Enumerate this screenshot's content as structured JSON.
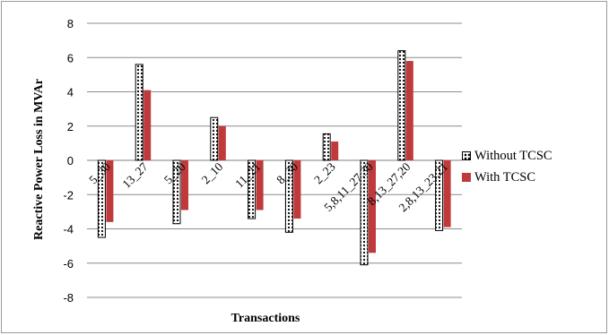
{
  "chart_data": {
    "type": "bar",
    "title": "",
    "xlabel": "Transactions",
    "ylabel": "Reactive Power Loss  in MVAr",
    "ylim": [
      -8,
      8
    ],
    "yticks": [
      "8",
      "6",
      "4",
      "2",
      "0",
      "-2",
      "-4",
      "-6",
      "-8"
    ],
    "grid": true,
    "legend_position": "right",
    "categories": [
      "5_30",
      "13_27",
      "5_20",
      "2_10",
      "11_21",
      "8_30",
      "2_23",
      "5,8,11_27,30",
      "8,13_27,20",
      "2,8,13_23,21"
    ],
    "series": [
      {
        "name": "Without TCSC",
        "color": "#000000",
        "pattern": "dotted",
        "values": [
          -4.5,
          5.6,
          -3.7,
          2.5,
          -3.4,
          -4.2,
          1.55,
          -6.1,
          6.4,
          -4.1
        ]
      },
      {
        "name": "With TCSC",
        "color": "#c0393b",
        "pattern": "solid",
        "values": [
          -3.6,
          4.1,
          -2.9,
          2.0,
          -2.9,
          -3.4,
          1.1,
          -5.4,
          5.8,
          -3.9
        ]
      }
    ]
  }
}
